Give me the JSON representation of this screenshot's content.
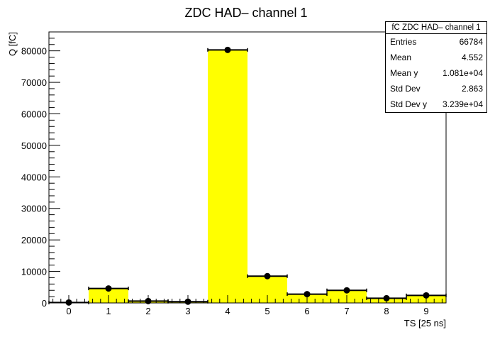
{
  "chart_data": {
    "type": "bar",
    "title": "ZDC HAD– channel 1",
    "xlabel": "TS [25 ns]",
    "ylabel": "Q [fC]",
    "categories": [
      "0",
      "1",
      "2",
      "3",
      "4",
      "5",
      "6",
      "7",
      "8",
      "9"
    ],
    "values": [
      150,
      4600,
      600,
      400,
      80300,
      8500,
      2800,
      4000,
      1500,
      2400
    ],
    "xlim": [
      -0.5,
      9.5
    ],
    "ylim": [
      0,
      86000
    ],
    "yticks": [
      0,
      10000,
      20000,
      30000,
      40000,
      50000,
      60000,
      70000,
      80000
    ],
    "xticks": [
      0,
      1,
      2,
      3,
      4,
      5,
      6,
      7,
      8,
      9
    ],
    "ytick_labels": [
      "0",
      "10000",
      "20000",
      "30000",
      "40000",
      "50000",
      "60000",
      "70000",
      "80000"
    ],
    "xtick_labels": [
      "0",
      "1",
      "2",
      "3",
      "4",
      "5",
      "6",
      "7",
      "8",
      "9"
    ],
    "bar_color": "#ffff00",
    "marker_color": "#000000",
    "grid": false
  },
  "stats": {
    "title": "fC ZDC HAD– channel 1",
    "rows": [
      {
        "label": "Entries",
        "value": "66784"
      },
      {
        "label": "Mean",
        "value": "4.552"
      },
      {
        "label": "Mean y",
        "value": "1.081e+04"
      },
      {
        "label": "Std Dev",
        "value": "2.863"
      },
      {
        "label": "Std Dev y",
        "value": "3.239e+04"
      }
    ]
  }
}
